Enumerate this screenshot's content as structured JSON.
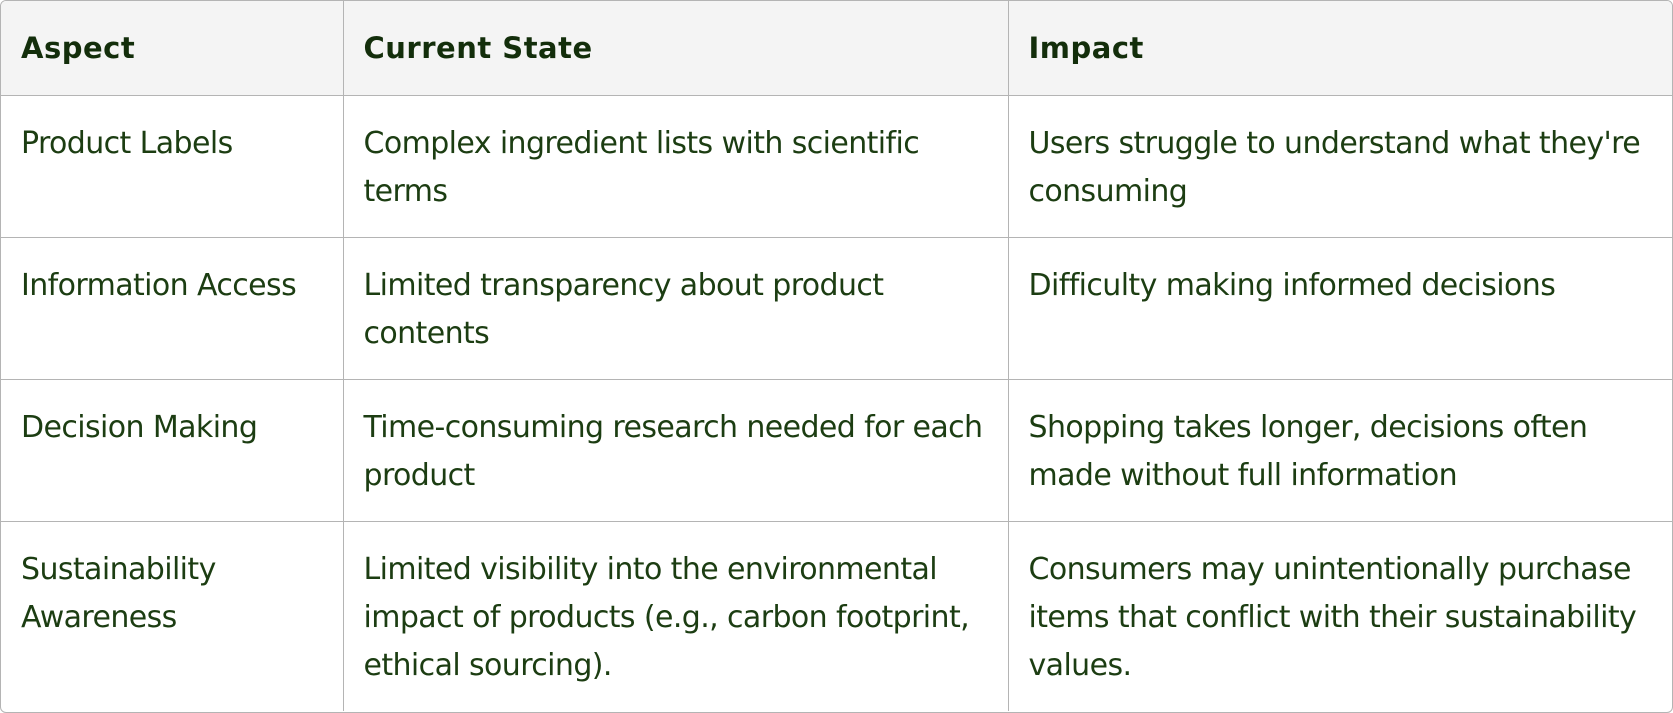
{
  "table": {
    "headers": [
      "Aspect",
      "Current State",
      "Impact"
    ],
    "rows": [
      {
        "aspect": "Product Labels",
        "current_state": "Complex ingredient lists with scientific terms",
        "impact": "Users struggle to understand what they're consuming"
      },
      {
        "aspect": "Information Access",
        "current_state": "Limited transparency about product contents",
        "impact": "Difficulty making informed decisions"
      },
      {
        "aspect": "Decision Making",
        "current_state": "Time-consuming research needed for each product",
        "impact": "Shopping takes longer, decisions often made without full information"
      },
      {
        "aspect": "Sustainability Awareness",
        "current_state": "Limited visibility into the environmental impact of products (e.g., carbon footprint, ethical sourcing).",
        "impact": "Consumers may unintentionally purchase items that conflict with their sustainability values."
      }
    ]
  },
  "colors": {
    "text": "#1c3d12",
    "header_background": "#f4f4f4",
    "border": "#b4b4b4"
  }
}
